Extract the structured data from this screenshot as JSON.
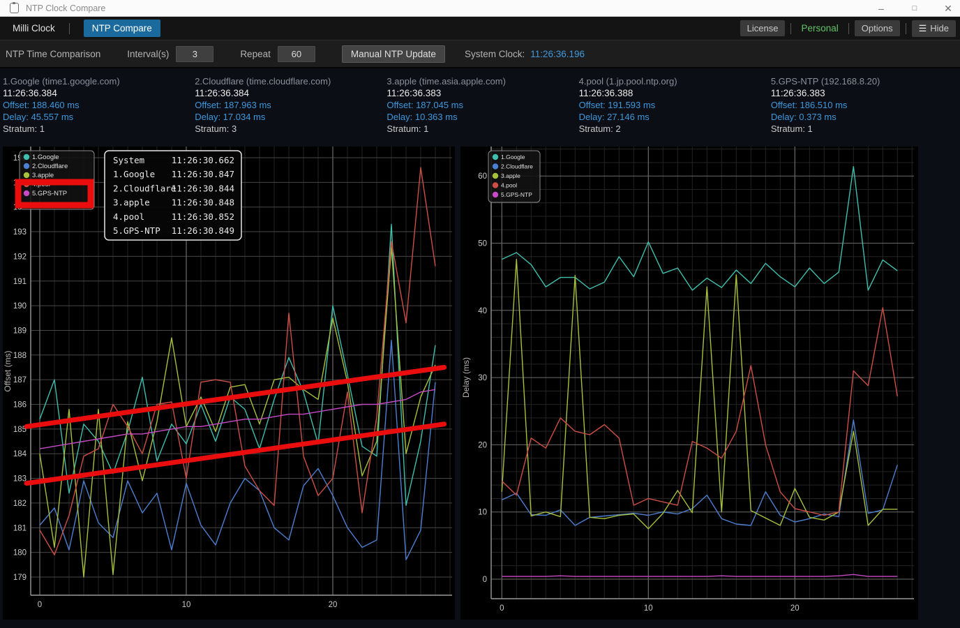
{
  "window": {
    "title": "NTP Clock Compare"
  },
  "tabbar": {
    "tab_milli": "Milli Clock",
    "tab_ntp": "NTP Compare",
    "license": "License",
    "personal": "Personal",
    "options": "Options",
    "hide": "Hide"
  },
  "toolbar": {
    "title": "NTP Time Comparison",
    "interval_label": "Interval(s)",
    "interval_value": "3",
    "repeat_label": "Repeat",
    "repeat_value": "60",
    "update_button": "Manual NTP Update",
    "system_clock_label": "System Clock:",
    "system_clock_value": "11:26:36.196"
  },
  "servers": [
    {
      "name": "1.Google (time1.google.com)",
      "time": "11:26:36.384",
      "offset": "Offset: 188.460 ms",
      "delay": "Delay: 45.557 ms",
      "stratum": "Stratum: 1"
    },
    {
      "name": "2.Cloudflare (time.cloudflare.com)",
      "time": "11:26:36.384",
      "offset": "Offset: 187.963 ms",
      "delay": "Delay: 17.034 ms",
      "stratum": "Stratum: 3"
    },
    {
      "name": "3.apple (time.asia.apple.com)",
      "time": "11:26:36.383",
      "offset": "Offset: 187.045 ms",
      "delay": "Delay: 10.363 ms",
      "stratum": "Stratum: 1"
    },
    {
      "name": "4.pool (1.jp.pool.ntp.org)",
      "time": "11:26:36.388",
      "offset": "Offset: 191.593 ms",
      "delay": "Delay: 27.146 ms",
      "stratum": "Stratum: 2"
    },
    {
      "name": "5.GPS-NTP (192.168.8.20)",
      "time": "11:26:36.383",
      "offset": "Offset: 186.510 ms",
      "delay": "Delay: 0.373 ms",
      "stratum": "Stratum: 1"
    }
  ],
  "colors": {
    "accent_blue_text": "#3d99dd",
    "active_tab": "#1a6a9d",
    "personal_green": "#63c366",
    "annotation_red": "#ea0d0d",
    "series": {
      "google": "#3fbfae",
      "cloudflare": "#4d7fd0",
      "apple": "#a7c13b",
      "pool": "#cd4f45",
      "gps": "#c64ac6"
    }
  },
  "chart_data": [
    {
      "type": "line",
      "title": "",
      "ylabel": "Offset (ms)",
      "xlabel": "",
      "ylim": [
        178.3,
        196.5
      ],
      "xlim": [
        -0.6,
        28.1
      ],
      "yticks": [
        179,
        180,
        181,
        182,
        183,
        184,
        185,
        186,
        187,
        188,
        189,
        190,
        191,
        192,
        193,
        194,
        195,
        196
      ],
      "xticks": [
        0,
        10,
        20
      ],
      "grid": true,
      "legend_position": "top-left",
      "x": [
        0,
        1,
        2,
        3,
        4,
        5,
        6,
        7,
        8,
        9,
        10,
        11,
        12,
        13,
        14,
        15,
        16,
        17,
        18,
        19,
        20,
        21,
        22,
        23,
        24,
        25,
        26,
        27
      ],
      "series": [
        {
          "name": "1.Google",
          "color": "#3fbfae",
          "values": [
            185.4,
            187.0,
            182.4,
            185.2,
            184.5,
            183.2,
            184.9,
            187.1,
            183.7,
            185.2,
            184.4,
            186.0,
            184.5,
            186.3,
            185.8,
            184.2,
            186.2,
            187.9,
            186.5,
            184.4,
            190.0,
            187.2,
            184.3,
            183.9,
            193.3,
            181.9,
            184.5,
            188.4
          ]
        },
        {
          "name": "2.Cloudflare",
          "color": "#4d7fd0",
          "values": [
            181.1,
            181.8,
            180.1,
            182.9,
            181.2,
            180.6,
            182.9,
            181.6,
            182.4,
            180.1,
            182.8,
            181.1,
            180.3,
            182.0,
            183.0,
            182.5,
            181.0,
            180.5,
            182.7,
            183.4,
            182.3,
            181.0,
            180.2,
            180.5,
            188.6,
            179.7,
            180.9,
            186.9
          ]
        },
        {
          "name": "3.apple",
          "color": "#a7c13b",
          "values": [
            184.0,
            180.2,
            185.8,
            179.0,
            185.8,
            179.1,
            185.3,
            182.9,
            185.3,
            188.7,
            185.1,
            186.3,
            184.9,
            186.7,
            186.8,
            185.2,
            187.0,
            187.1,
            186.6,
            186.2,
            189.5,
            186.9,
            183.1,
            184.5,
            192.4,
            184.0,
            186.3,
            187.6
          ]
        },
        {
          "name": "4.pool",
          "color": "#cd4f45",
          "values": [
            180.9,
            179.9,
            181.5,
            183.9,
            184.2,
            186.0,
            185.1,
            184.0,
            186.0,
            186.1,
            183.0,
            186.9,
            187.0,
            186.9,
            183.5,
            182.5,
            181.9,
            189.7,
            183.9,
            182.3,
            183.0,
            186.5,
            181.6,
            185.5,
            192.6,
            189.3,
            195.6,
            191.6
          ]
        },
        {
          "name": "5.GPS-NTP",
          "color": "#c64ac6",
          "values": [
            184.2,
            184.3,
            184.4,
            184.5,
            184.6,
            184.7,
            184.8,
            184.8,
            184.9,
            185.0,
            185.1,
            185.1,
            185.2,
            185.3,
            185.4,
            185.4,
            185.5,
            185.6,
            185.6,
            185.7,
            185.8,
            185.9,
            186.0,
            186.0,
            186.1,
            186.2,
            186.5,
            186.6
          ]
        }
      ],
      "tooltip": {
        "rows": [
          {
            "name": "System",
            "value": "11:26:30.662"
          },
          {
            "name": "1.Google",
            "value": "11:26:30.847"
          },
          {
            "name": "2.Cloudflare",
            "value": "11:26:30.844"
          },
          {
            "name": "3.apple",
            "value": "11:26:30.848"
          },
          {
            "name": "4.pool",
            "value": "11:26:30.852"
          },
          {
            "name": "5.GPS-NTP",
            "value": "11:26:30.849"
          }
        ]
      },
      "annotations": {
        "color": "#ea0d0d",
        "highlight_rect_over_legend_item": "5.GPS-NTP",
        "lines_data_coords": [
          {
            "x1": -0.9,
            "y1": 185.1,
            "x2": 27.6,
            "y2": 187.5
          },
          {
            "x1": -0.9,
            "y1": 182.8,
            "x2": 27.6,
            "y2": 185.2
          }
        ]
      }
    },
    {
      "type": "line",
      "title": "",
      "ylabel": "Delay (ms)",
      "xlabel": "",
      "ylim": [
        -2.9,
        64.4
      ],
      "xlim": [
        -0.7,
        28.1
      ],
      "yticks": [
        0,
        10,
        20,
        30,
        40,
        50,
        60
      ],
      "xticks": [
        0,
        10,
        20
      ],
      "grid": true,
      "legend_position": "top-left",
      "x": [
        0,
        1,
        2,
        3,
        4,
        5,
        6,
        7,
        8,
        9,
        10,
        11,
        12,
        13,
        14,
        15,
        16,
        17,
        18,
        19,
        20,
        21,
        22,
        23,
        24,
        25,
        26,
        27
      ],
      "series": [
        {
          "name": "1.Google",
          "color": "#3fbfae",
          "values": [
            47.6,
            48.6,
            46.8,
            43.5,
            44.9,
            44.9,
            43.2,
            44.2,
            48.0,
            45.0,
            50.2,
            45.5,
            46.3,
            43.0,
            44.8,
            43.4,
            46.0,
            44.0,
            47.0,
            45.0,
            43.5,
            46.3,
            44.0,
            45.7,
            61.4,
            43.0,
            47.5,
            45.9
          ]
        },
        {
          "name": "2.Cloudflare",
          "color": "#4d7fd0",
          "values": [
            11.8,
            12.8,
            9.6,
            9.5,
            10.3,
            8.0,
            9.2,
            9.4,
            9.6,
            9.8,
            9.5,
            10.0,
            9.7,
            10.5,
            12.5,
            9.0,
            8.2,
            8.0,
            13.0,
            9.5,
            8.5,
            9.0,
            9.7,
            9.3,
            23.7,
            9.8,
            10.3,
            17.0
          ]
        },
        {
          "name": "3.apple",
          "color": "#a7c13b",
          "values": [
            13.0,
            47.6,
            9.4,
            10.0,
            9.3,
            45.2,
            9.2,
            9.0,
            9.5,
            9.7,
            7.5,
            9.8,
            13.2,
            9.9,
            43.5,
            10.0,
            45.3,
            10.2,
            9.1,
            8.0,
            13.5,
            9.2,
            8.8,
            10.0,
            22.0,
            8.0,
            10.4,
            10.4
          ]
        },
        {
          "name": "4.pool",
          "color": "#cd4f45",
          "values": [
            14.6,
            12.5,
            21.0,
            19.5,
            24.0,
            22.0,
            21.5,
            23.0,
            21.0,
            11.0,
            12.0,
            11.5,
            11.0,
            20.5,
            19.5,
            18.0,
            22.0,
            31.8,
            20.0,
            13.0,
            10.5,
            10.0,
            9.5,
            10.0,
            31.0,
            28.8,
            40.4,
            27.2
          ]
        },
        {
          "name": "5.GPS-NTP",
          "color": "#c64ac6",
          "values": [
            0.4,
            0.4,
            0.4,
            0.4,
            0.5,
            0.4,
            0.4,
            0.4,
            0.4,
            0.4,
            0.4,
            0.4,
            0.4,
            0.4,
            0.4,
            0.5,
            0.4,
            0.4,
            0.4,
            0.4,
            0.4,
            0.4,
            0.4,
            0.5,
            0.7,
            0.4,
            0.4,
            0.4
          ]
        }
      ]
    }
  ]
}
